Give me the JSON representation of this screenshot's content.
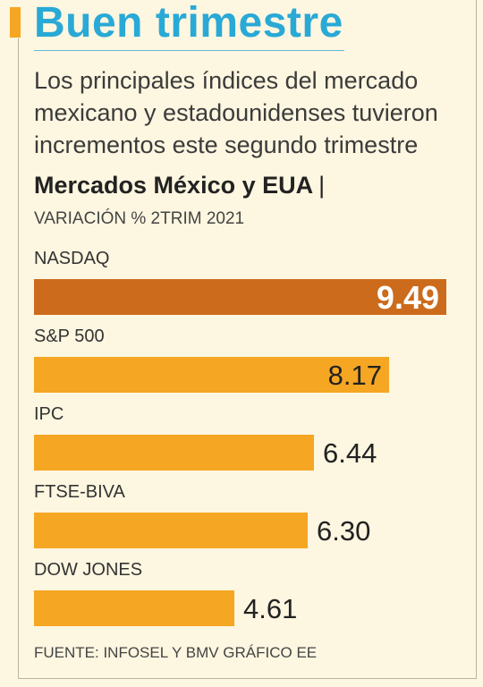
{
  "title": "Buen trimestre",
  "subtitle": "Los principales índices del mercado mexicano y estadounidenses tuvieron incrementos este segundo trimestre",
  "chart_title": "Mercados México y EUA",
  "chart_title_sep": "|",
  "measure": "VARIACIÓN % 2TRIM 2021",
  "source": "FUENTE: INFOSEL Y BMV    GRÁFICO EE",
  "colors": {
    "title": "#29a9d6",
    "bar": "#f5a623",
    "bar_highlight": "#cc6b1c",
    "background": "#fdf6e0"
  },
  "chart_data": {
    "type": "bar",
    "orientation": "horizontal",
    "categories": [
      "NASDAQ",
      "S&P 500",
      "IPC",
      "FTSE-BIVA",
      "DOW JONES"
    ],
    "values": [
      9.49,
      8.17,
      6.44,
      6.3,
      4.61
    ],
    "value_labels": [
      "9.49",
      "8.17",
      "6.44",
      "6.30",
      "4.61"
    ],
    "unit": "%",
    "xlim": [
      0,
      9.49
    ]
  }
}
